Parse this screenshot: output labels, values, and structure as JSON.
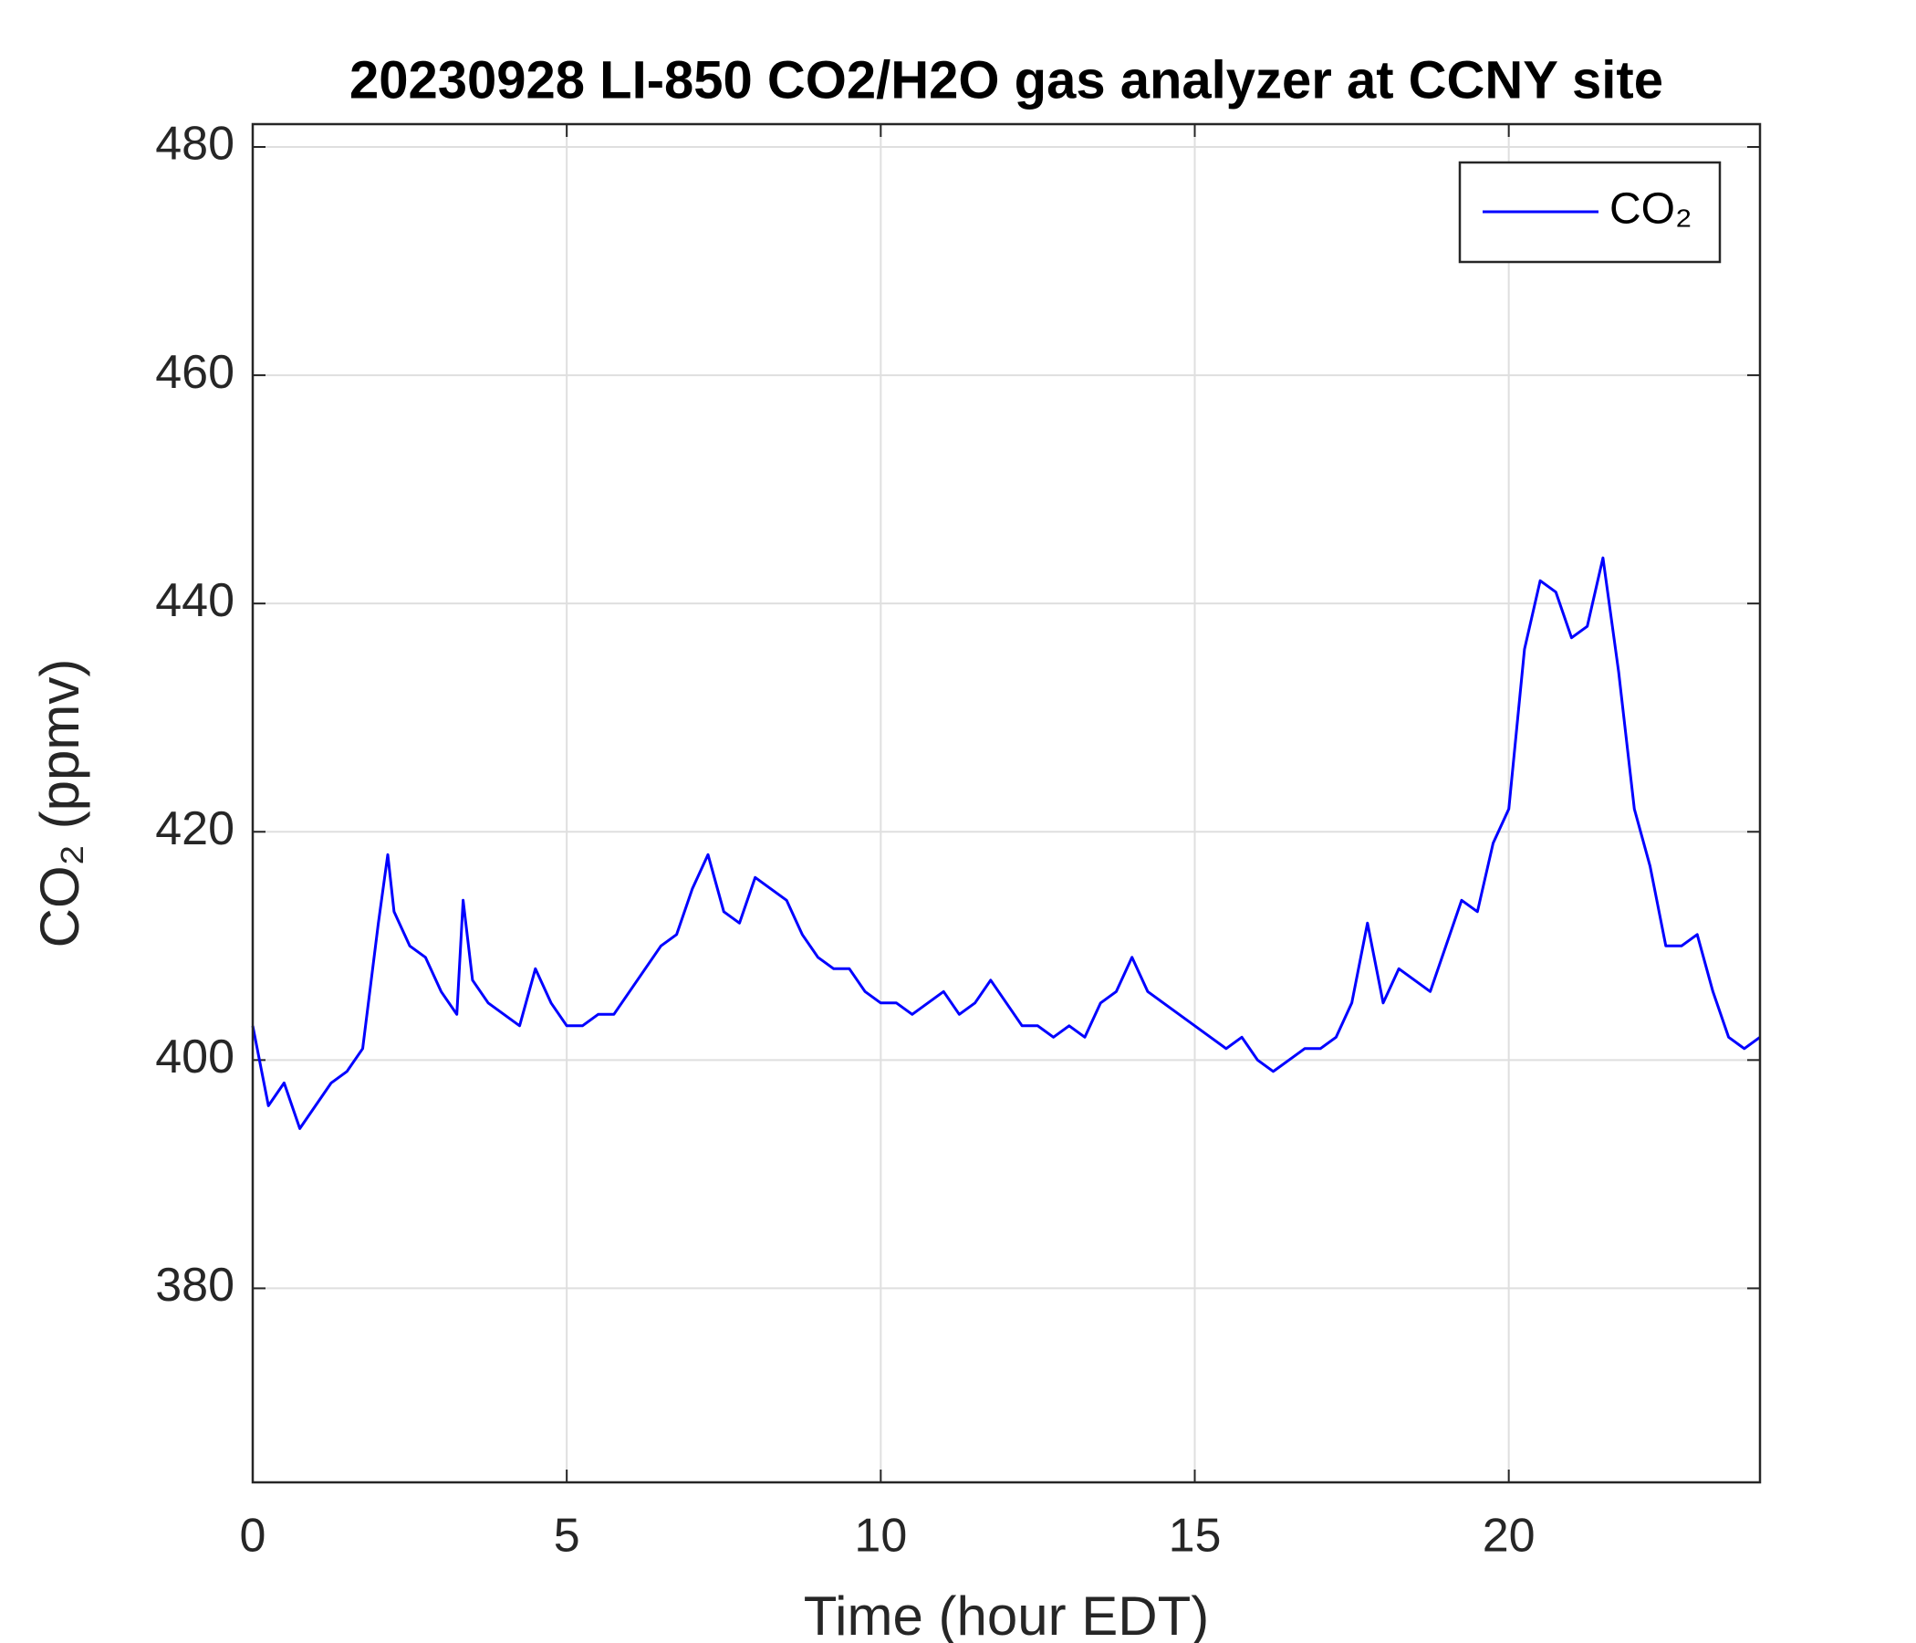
{
  "chart_data": {
    "type": "line",
    "title": "20230928 LI-850 CO2/H2O gas analyzer at CCNY site",
    "xlabel": "Time (hour EDT)",
    "ylabel": "CO₂ (ppmv)",
    "xlim": [
      0,
      24
    ],
    "xticks": [
      0,
      5,
      10,
      15,
      20
    ],
    "ylim": [
      363,
      482
    ],
    "yticks": [
      380,
      400,
      420,
      440,
      460,
      480
    ],
    "grid": true,
    "legend": "upper right",
    "x": [
      0,
      0.25,
      0.5,
      0.75,
      1.0,
      1.25,
      1.5,
      1.75,
      2.0,
      2.15,
      2.25,
      2.5,
      2.75,
      3.0,
      3.25,
      3.35,
      3.5,
      3.75,
      4.0,
      4.25,
      4.5,
      4.75,
      5.0,
      5.25,
      5.5,
      5.75,
      6.0,
      6.25,
      6.5,
      6.75,
      7.0,
      7.25,
      7.5,
      7.75,
      8.0,
      8.25,
      8.5,
      8.75,
      9.0,
      9.25,
      9.5,
      9.75,
      10.0,
      10.25,
      10.5,
      10.75,
      11.0,
      11.25,
      11.5,
      11.75,
      12.0,
      12.25,
      12.5,
      12.75,
      13.0,
      13.25,
      13.5,
      13.75,
      14.0,
      14.25,
      14.5,
      14.75,
      15.0,
      15.25,
      15.5,
      15.75,
      16.0,
      16.25,
      16.5,
      16.75,
      17.0,
      17.25,
      17.5,
      17.75,
      18.0,
      18.25,
      18.5,
      18.75,
      19.0,
      19.25,
      19.5,
      19.75,
      20.0,
      20.25,
      20.5,
      20.75,
      21.0,
      21.25,
      21.5,
      21.75,
      22.0,
      22.25,
      22.5,
      22.75,
      23.0,
      23.25,
      23.5,
      23.75,
      24.0
    ],
    "series": [
      {
        "name": "CO₂",
        "color": "#0000ff",
        "values": [
          403,
          396,
          398,
          394,
          396,
          398,
          399,
          401,
          412,
          418,
          413,
          410,
          409,
          406,
          404,
          414,
          407,
          405,
          404,
          403,
          408,
          405,
          403,
          403,
          404,
          404,
          406,
          408,
          410,
          411,
          415,
          418,
          413,
          412,
          416,
          415,
          414,
          411,
          409,
          408,
          408,
          406,
          405,
          405,
          404,
          405,
          406,
          404,
          405,
          407,
          405,
          403,
          403,
          402,
          403,
          402,
          405,
          406,
          409,
          406,
          405,
          404,
          403,
          402,
          401,
          402,
          400,
          399,
          400,
          401,
          401,
          402,
          405,
          412,
          405,
          408,
          407,
          406,
          410,
          414,
          413,
          419,
          422,
          436,
          442,
          441,
          437,
          438,
          444,
          434,
          422,
          417,
          410,
          410,
          411,
          406,
          402,
          401,
          402
        ]
      }
    ]
  }
}
